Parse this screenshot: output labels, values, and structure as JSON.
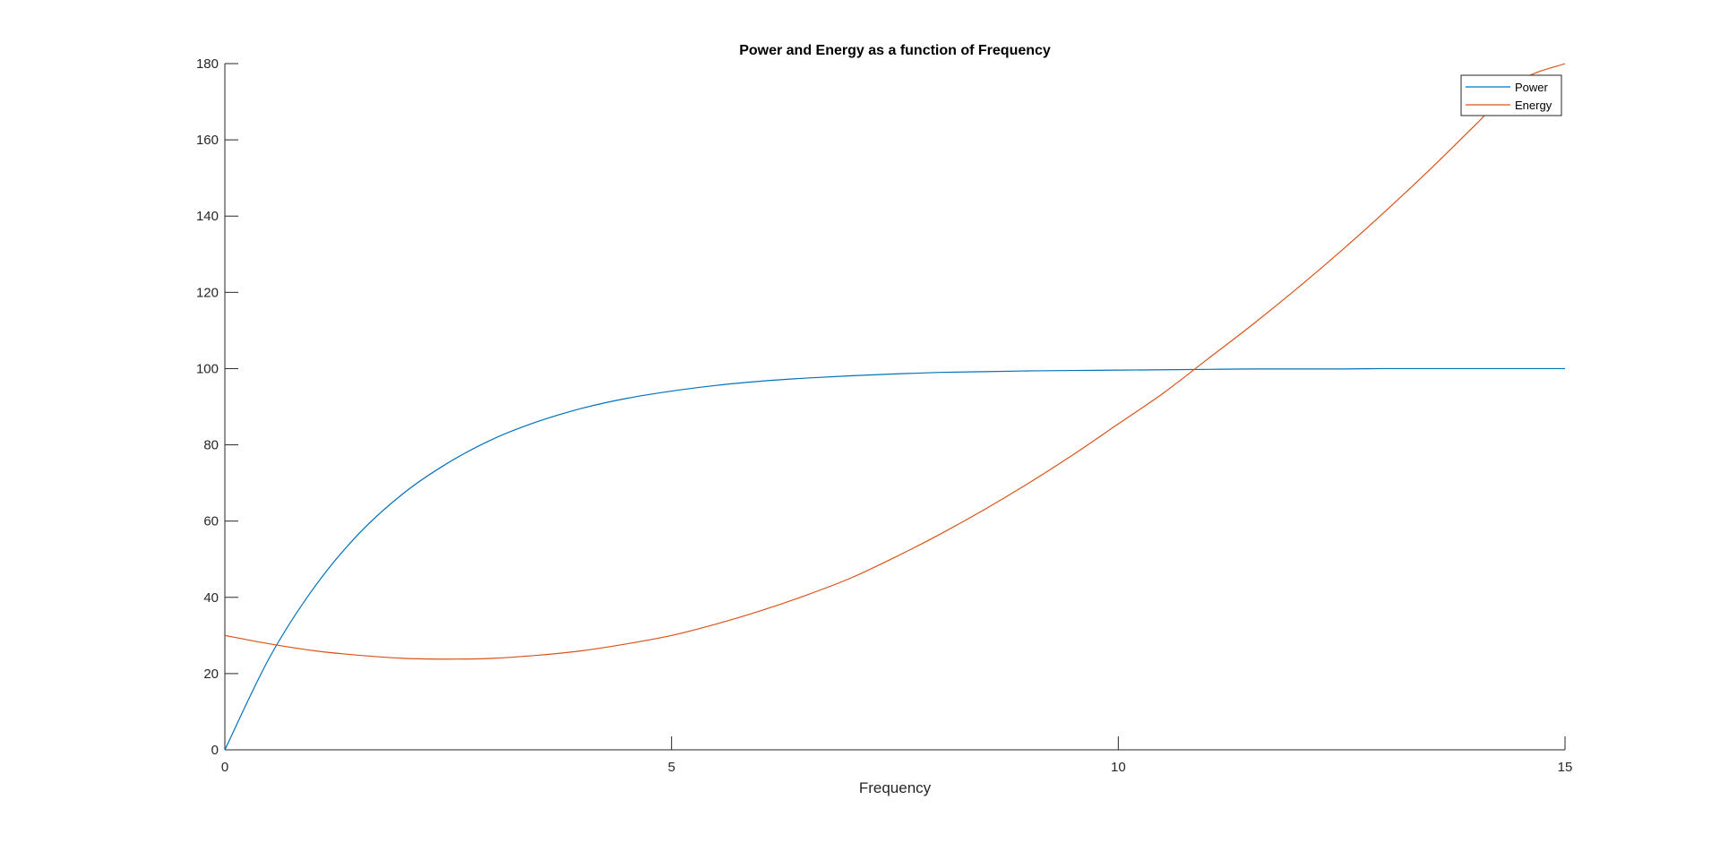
{
  "chart_data": {
    "type": "line",
    "title": "Power and Energy as a function of Frequency",
    "xlabel": "Frequency",
    "ylabel": "",
    "xlim": [
      0,
      15
    ],
    "ylim": [
      0,
      180
    ],
    "xticks": [
      0,
      5,
      10,
      15
    ],
    "yticks": [
      0,
      20,
      40,
      60,
      80,
      100,
      120,
      140,
      160,
      180
    ],
    "grid": false,
    "legend_location": "top-right",
    "series": [
      {
        "name": "Power",
        "color": "#0072BD",
        "x": [
          0,
          0.5,
          1,
          1.5,
          2,
          2.5,
          3,
          3.5,
          4,
          4.5,
          5,
          5.5,
          6,
          6.5,
          7,
          7.5,
          8,
          8.5,
          9,
          9.5,
          10,
          10.5,
          11,
          11.5,
          12,
          12.5,
          13,
          13.5,
          14,
          14.5,
          15
        ],
        "values": [
          0,
          24.2,
          42.6,
          56.7,
          67.3,
          75.3,
          81.5,
          86.1,
          89.6,
          92.2,
          94.1,
          95.6,
          96.7,
          97.5,
          98.1,
          98.6,
          99.0,
          99.2,
          99.4,
          99.5,
          99.6,
          99.7,
          99.8,
          99.9,
          99.9,
          99.9,
          100,
          100,
          100,
          100,
          100
        ]
      },
      {
        "name": "Energy",
        "color": "#D95319",
        "x": [
          0,
          0.5,
          1,
          1.5,
          2,
          2.5,
          3,
          3.5,
          4,
          4.5,
          5,
          5.5,
          6,
          6.5,
          7,
          7.5,
          8,
          8.5,
          9,
          9.5,
          10,
          10.5,
          11,
          11.5,
          12,
          12.5,
          13,
          13.5,
          14,
          14.5,
          15
        ],
        "values": [
          30,
          27.8,
          26.0,
          24.8,
          24.0,
          23.8,
          24.0,
          24.8,
          26.0,
          27.8,
          30.0,
          33.0,
          36.5,
          40.5,
          45.0,
          50.5,
          56.5,
          63.0,
          70.0,
          77.5,
          85.5,
          93.5,
          102.5,
          111.5,
          121.0,
          131.0,
          141.5,
          152.5,
          164.0,
          175.5,
          180.0
        ]
      }
    ]
  }
}
